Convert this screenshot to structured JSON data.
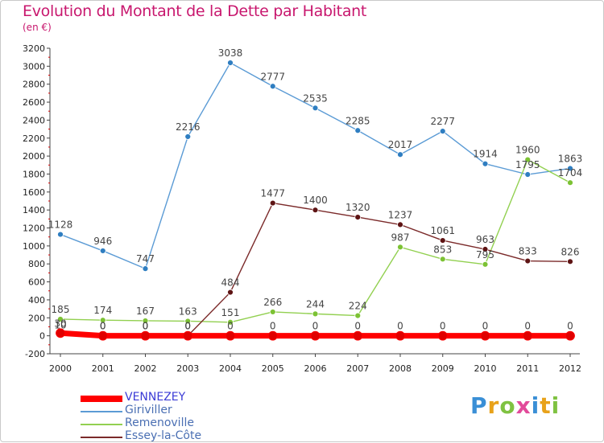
{
  "title": "Evolution du Montant de la Dette par Habitant",
  "subtitle": "(en €)",
  "brand": {
    "letters": [
      "P",
      "r",
      "o",
      "x",
      "i",
      "t",
      "i"
    ],
    "colors": [
      "#3a8fd6",
      "#e8a21a",
      "#7fc241",
      "#e24a9a",
      "#3a8fd6",
      "#e8a21a",
      "#7fc241"
    ]
  },
  "chart_data": {
    "type": "line",
    "title": "Evolution du Montant de la Dette par Habitant",
    "subtitle": "(en €)",
    "xlabel": "",
    "ylabel": "",
    "x": [
      "2000",
      "2001",
      "2002",
      "2003",
      "2004",
      "2005",
      "2006",
      "2007",
      "2008",
      "2009",
      "2010",
      "2011",
      "2012"
    ],
    "ylim": [
      -200,
      3200
    ],
    "yticks": [
      "-200",
      "0",
      "200",
      "400",
      "600",
      "800",
      "1000",
      "1200",
      "1400",
      "1600",
      "1800",
      "2000",
      "2200",
      "2400",
      "2600",
      "2800",
      "3000",
      "3200"
    ],
    "grid": false,
    "legend_position": "bottom-left",
    "series": [
      {
        "name": "Giriviller",
        "color": "#5b9bd5",
        "marker": "#2f7ec1",
        "values": [
          1128,
          946,
          747,
          2216,
          3038,
          2777,
          2535,
          2285,
          2017,
          2277,
          1914,
          1795,
          1863
        ],
        "labels": [
          "1128",
          "946",
          "747",
          "2216",
          "3038",
          "2777",
          "2535",
          "2285",
          "2017",
          "2277",
          "1914",
          "1795",
          "1863"
        ]
      },
      {
        "name": "Remenoville",
        "color": "#92d050",
        "marker": "#7cc234",
        "values": [
          185,
          174,
          167,
          163,
          151,
          266,
          244,
          224,
          987,
          853,
          795,
          1960,
          1704
        ],
        "labels": [
          "185",
          "174",
          "167",
          "163",
          "151",
          "266",
          "244",
          "224",
          "987",
          "853",
          "795",
          "1960",
          "1704"
        ]
      },
      {
        "name": "Essey-la-Côte",
        "color": "#7b2a2a",
        "marker": "#5e1414",
        "values": [
          10,
          0,
          0,
          0,
          484,
          1477,
          1400,
          1320,
          1237,
          1061,
          963,
          833,
          826
        ],
        "labels": [
          "10",
          "0",
          "0",
          "0",
          "484",
          "1477",
          "1400",
          "1320",
          "1237",
          "1061",
          "963",
          "833",
          "826"
        ]
      },
      {
        "name": "VENNEZEY",
        "color": "#ff0000",
        "marker": "#e00000",
        "thick": true,
        "values": [
          30,
          0,
          0,
          0,
          0,
          0,
          0,
          0,
          0,
          0,
          0,
          0,
          0
        ],
        "labels": [
          "30",
          "0",
          "0",
          "0",
          "0",
          "0",
          "0",
          "0",
          "0",
          "0",
          "0",
          "0",
          "0"
        ]
      }
    ],
    "legend_order": [
      "VENNEZEY",
      "Giriviller",
      "Remenoville",
      "Essey-la-Côte"
    ]
  }
}
